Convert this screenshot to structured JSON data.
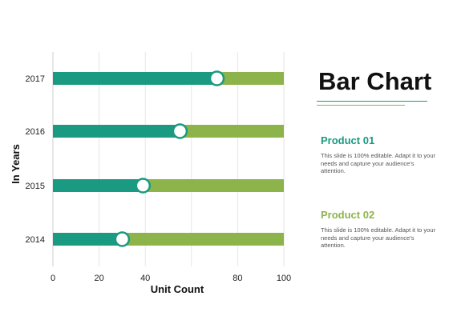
{
  "title": "Bar Chart",
  "products": [
    {
      "name": "Product 01",
      "description": "This slide is 100% editable. Adapt it to your needs and capture your audience's attention."
    },
    {
      "name": "Product 02",
      "description": "This slide is 100% editable. Adapt it to your needs and capture your audience's attention."
    }
  ],
  "colors": {
    "product_01": "#1a9a80",
    "product_02": "#8db44a",
    "grid": "#e6e6e6",
    "axis": "#cccccc"
  },
  "chart_data": {
    "type": "bar",
    "orientation": "horizontal",
    "stacked": true,
    "categories": [
      "2014",
      "2015",
      "2016",
      "2017"
    ],
    "series": [
      {
        "name": "Product 01",
        "values": [
          30,
          39,
          55,
          71
        ]
      },
      {
        "name": "Product 02",
        "values": [
          70,
          61,
          45,
          29
        ]
      }
    ],
    "xlabel": "Unit Count",
    "ylabel": "In Years",
    "xlim": [
      0,
      100
    ],
    "xticks": [
      "0",
      "20",
      "40",
      "80",
      "100"
    ],
    "xtick_values": [
      0,
      20,
      40,
      80,
      100
    ],
    "grid": true,
    "markers": "circle at end of Product 01 segment"
  }
}
